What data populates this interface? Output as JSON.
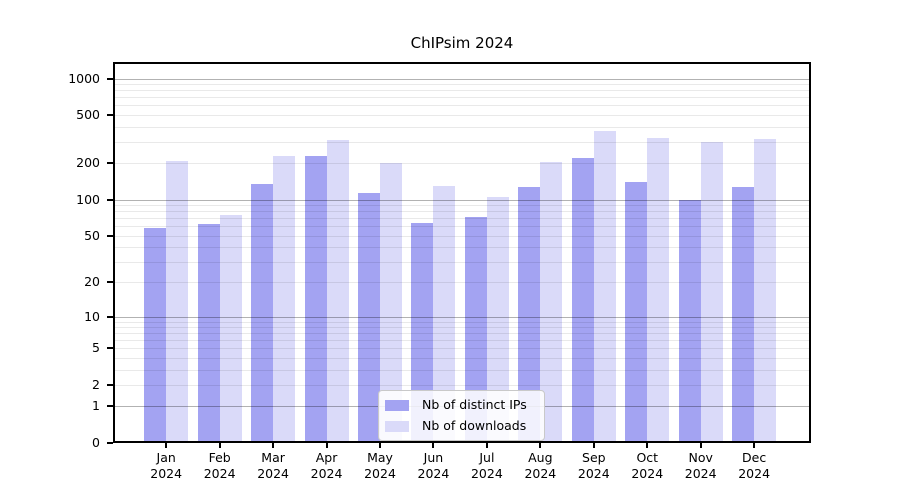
{
  "title": "ChIPsim 2024",
  "colors": {
    "distinct_ips_bar": "#a3a3f2",
    "downloads_bar": "#dadaf9",
    "major_gridline": "#b3b3b3",
    "minor_gridline": "#e9e9e9",
    "axis_spine": "#000000",
    "background": "#ffffff"
  },
  "legend": {
    "items": [
      "Nb of distinct IPs",
      "Nb of downloads"
    ]
  },
  "chart_data": {
    "type": "bar",
    "title": "ChIPsim 2024",
    "xlabel": "",
    "ylabel": "",
    "yscale": "log1p",
    "ylim": [
      0,
      1370
    ],
    "yticks": [
      0,
      1,
      2,
      5,
      10,
      20,
      50,
      100,
      200,
      500,
      1000
    ],
    "major_gridlines": [
      1,
      10,
      100,
      1000
    ],
    "grid": true,
    "legend_position": "lower center",
    "categories": [
      "Jan",
      "Feb",
      "Mar",
      "Apr",
      "May",
      "Jun",
      "Jul",
      "Aug",
      "Sep",
      "Oct",
      "Nov",
      "Dec"
    ],
    "year": "2024",
    "series": [
      {
        "name": "Nb of distinct IPs",
        "color": "#a3a3f2",
        "values": [
          58,
          63,
          135,
          230,
          114,
          64,
          71,
          128,
          222,
          141,
          100,
          127
        ]
      },
      {
        "name": "Nb of downloads",
        "color": "#dadaf9",
        "values": [
          210,
          75,
          230,
          310,
          200,
          130,
          105,
          205,
          370,
          324,
          300,
          320
        ]
      }
    ]
  }
}
